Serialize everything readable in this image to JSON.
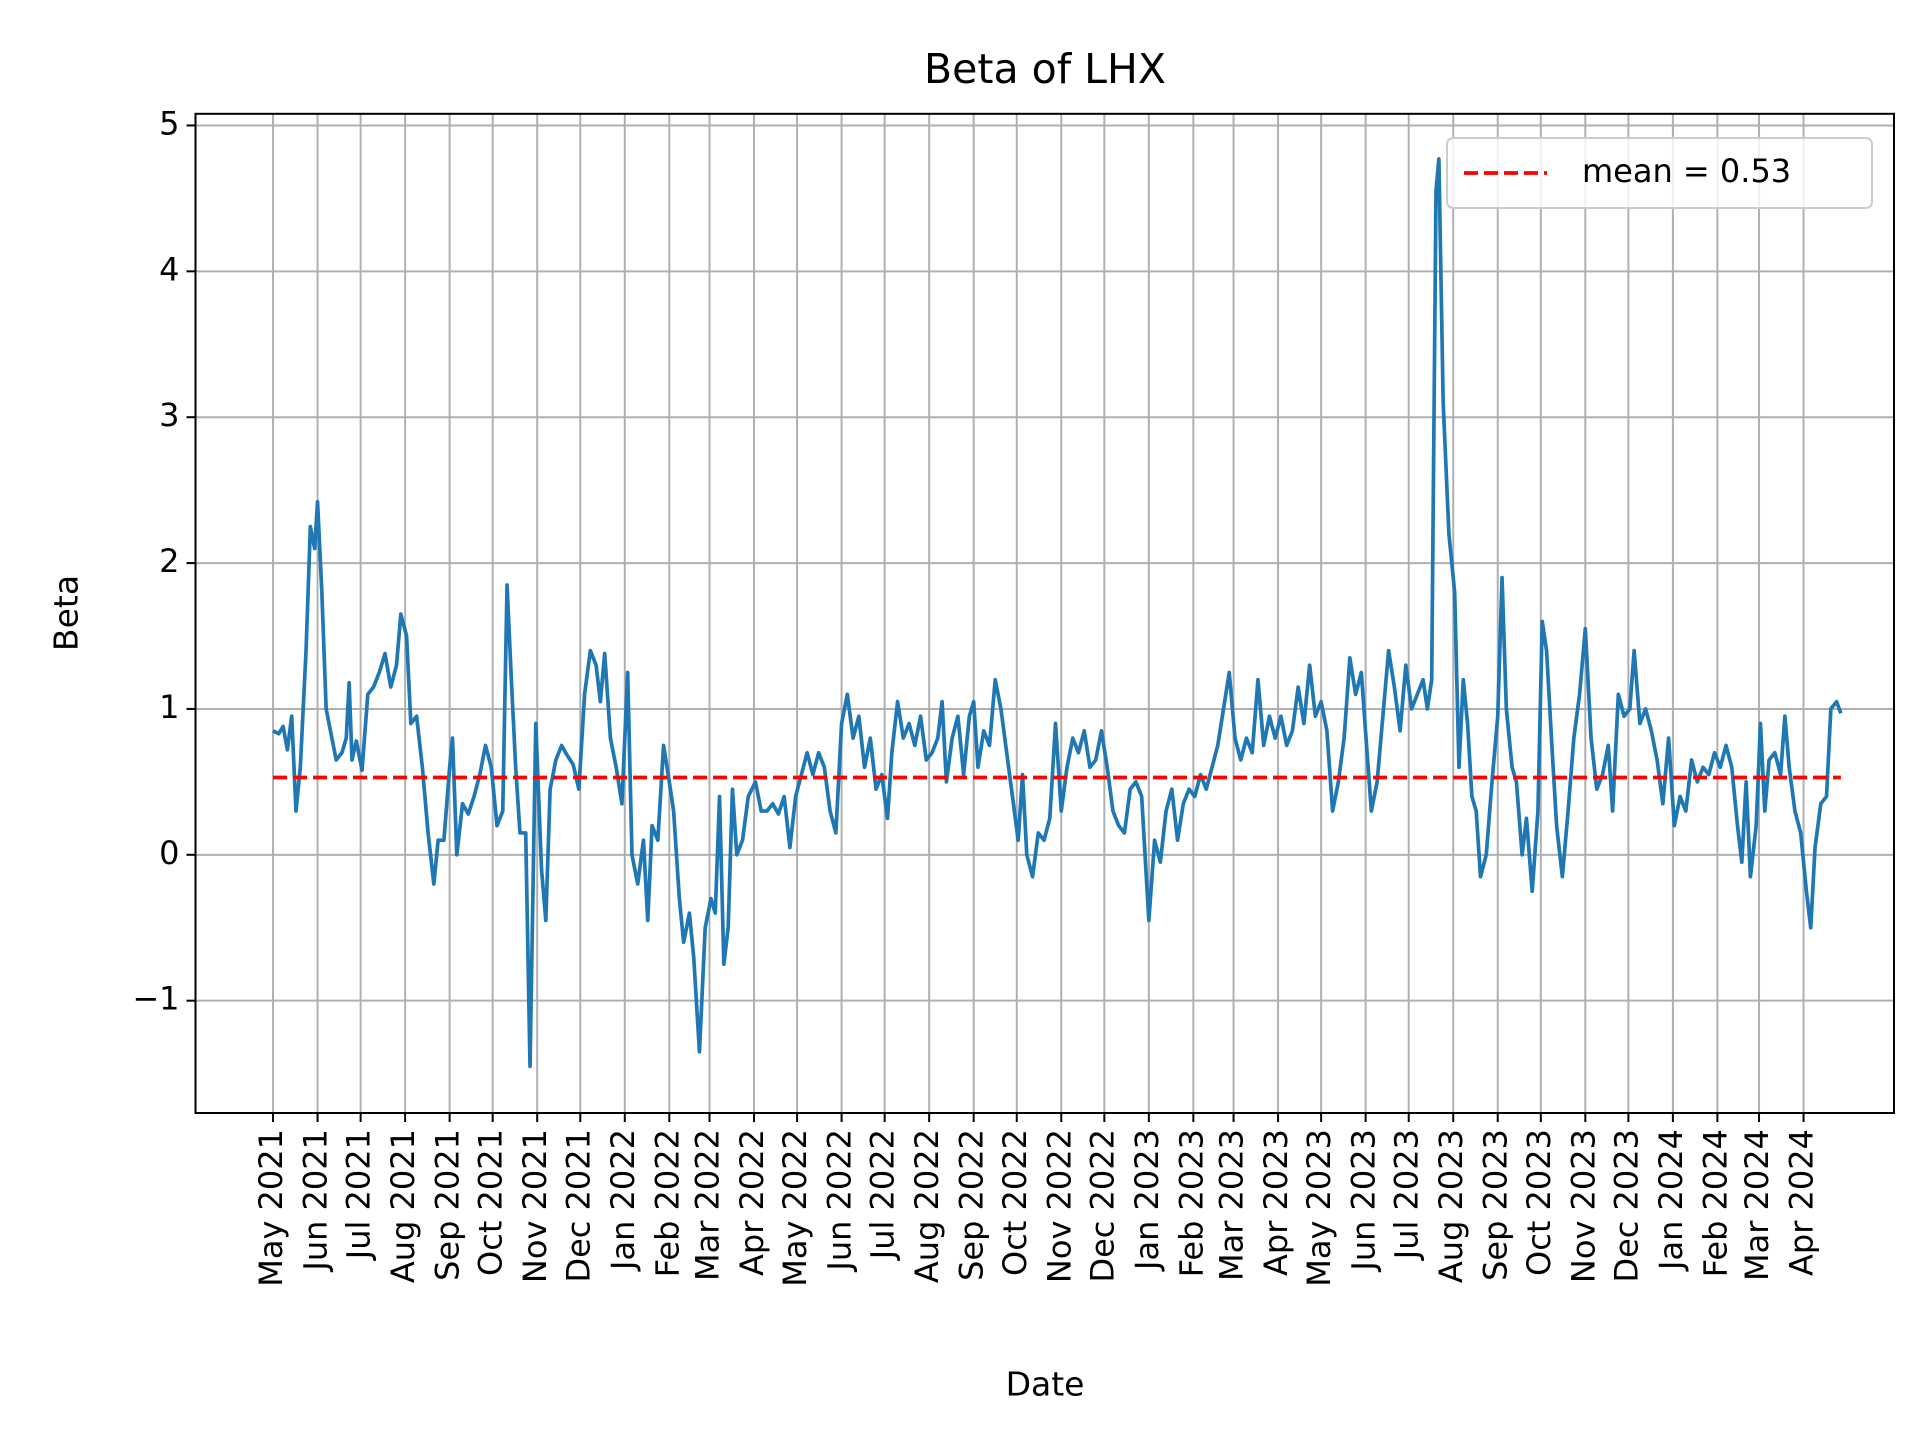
{
  "chart_data": {
    "type": "line",
    "title": "Beta of LHX",
    "x_label": "Date",
    "y_label": "Beta",
    "color": "#1f77b4",
    "grid": true,
    "legend_position": "upper right",
    "mean_line": {
      "name": "mean = 0.53",
      "value": 0.53,
      "color": "#ff0000"
    },
    "xlim": [
      "2021-03-08",
      "2024-06-03"
    ],
    "ylim": [
      -1.77,
      5.08
    ],
    "yticks": [
      {
        "value": -1,
        "label": "−1"
      },
      0,
      1,
      2,
      3,
      4,
      5
    ],
    "xticks": [
      {
        "value": "2021-05",
        "label": "May 2021"
      },
      {
        "value": "2021-06",
        "label": "Jun 2021"
      },
      {
        "value": "2021-07",
        "label": "Jul 2021"
      },
      {
        "value": "2021-08",
        "label": "Aug 2021"
      },
      {
        "value": "2021-09",
        "label": "Sep 2021"
      },
      {
        "value": "2021-10",
        "label": "Oct 2021"
      },
      {
        "value": "2021-11",
        "label": "Nov 2021"
      },
      {
        "value": "2021-12",
        "label": "Dec 2021"
      },
      {
        "value": "2022-01",
        "label": "Jan 2022"
      },
      {
        "value": "2022-02",
        "label": "Feb 2022"
      },
      {
        "value": "2022-03",
        "label": "Mar 2022"
      },
      {
        "value": "2022-04",
        "label": "Apr 2022"
      },
      {
        "value": "2022-05",
        "label": "May 2022"
      },
      {
        "value": "2022-06",
        "label": "Jun 2022"
      },
      {
        "value": "2022-07",
        "label": "Jul 2022"
      },
      {
        "value": "2022-08",
        "label": "Aug 2022"
      },
      {
        "value": "2022-09",
        "label": "Sep 2022"
      },
      {
        "value": "2022-10",
        "label": "Oct 2022"
      },
      {
        "value": "2022-11",
        "label": "Nov 2022"
      },
      {
        "value": "2022-12",
        "label": "Dec 2022"
      },
      {
        "value": "2023-01",
        "label": "Jan 2023"
      },
      {
        "value": "2023-02",
        "label": "Feb 2023"
      },
      {
        "value": "2023-03",
        "label": "Mar 2023"
      },
      {
        "value": "2023-04",
        "label": "Apr 2023"
      },
      {
        "value": "2023-05",
        "label": "May 2023"
      },
      {
        "value": "2023-06",
        "label": "Jun 2023"
      },
      {
        "value": "2023-07",
        "label": "Jul 2023"
      },
      {
        "value": "2023-08",
        "label": "Aug 2023"
      },
      {
        "value": "2023-09",
        "label": "Sep 2023"
      },
      {
        "value": "2023-10",
        "label": "Oct 2023"
      },
      {
        "value": "2023-11",
        "label": "Nov 2023"
      },
      {
        "value": "2023-12",
        "label": "Dec 2023"
      },
      {
        "value": "2024-01",
        "label": "Jan 2024"
      },
      {
        "value": "2024-02",
        "label": "Feb 2024"
      },
      {
        "value": "2024-03",
        "label": "Mar 2024"
      },
      {
        "value": "2024-04",
        "label": "Apr 2024"
      }
    ],
    "x": [
      "2021-05-01",
      "2021-05-05",
      "2021-05-08",
      "2021-05-11",
      "2021-05-14",
      "2021-05-17",
      "2021-05-20",
      "2021-05-24",
      "2021-05-27",
      "2021-05-30",
      "2021-06-01",
      "2021-06-04",
      "2021-06-07",
      "2021-06-10",
      "2021-06-14",
      "2021-06-18",
      "2021-06-21",
      "2021-06-23",
      "2021-06-25",
      "2021-06-28",
      "2021-07-02",
      "2021-07-06",
      "2021-07-10",
      "2021-07-14",
      "2021-07-18",
      "2021-07-22",
      "2021-07-26",
      "2021-07-29",
      "2021-08-02",
      "2021-08-05",
      "2021-08-09",
      "2021-08-13",
      "2021-08-17",
      "2021-08-21",
      "2021-08-24",
      "2021-08-28",
      "2021-09-01",
      "2021-09-03",
      "2021-09-06",
      "2021-09-10",
      "2021-09-14",
      "2021-09-18",
      "2021-09-22",
      "2021-09-26",
      "2021-09-30",
      "2021-10-04",
      "2021-10-08",
      "2021-10-11",
      "2021-10-14",
      "2021-10-17",
      "2021-10-20",
      "2021-10-24",
      "2021-10-27",
      "2021-10-31",
      "2021-11-04",
      "2021-11-07",
      "2021-11-10",
      "2021-11-14",
      "2021-11-18",
      "2021-11-22",
      "2021-11-26",
      "2021-11-30",
      "2021-12-04",
      "2021-12-08",
      "2021-12-12",
      "2021-12-15",
      "2021-12-18",
      "2021-12-22",
      "2021-12-26",
      "2021-12-30",
      "2022-01-03",
      "2022-01-06",
      "2022-01-10",
      "2022-01-14",
      "2022-01-17",
      "2022-01-20",
      "2022-01-24",
      "2022-01-28",
      "2022-02-01",
      "2022-02-04",
      "2022-02-08",
      "2022-02-11",
      "2022-02-15",
      "2022-02-18",
      "2022-02-22",
      "2022-02-26",
      "2022-03-02",
      "2022-03-05",
      "2022-03-08",
      "2022-03-11",
      "2022-03-14",
      "2022-03-17",
      "2022-03-20",
      "2022-03-24",
      "2022-03-28",
      "2022-04-02",
      "2022-04-06",
      "2022-04-10",
      "2022-04-14",
      "2022-04-18",
      "2022-04-22",
      "2022-04-26",
      "2022-04-30",
      "2022-05-04",
      "2022-05-08",
      "2022-05-12",
      "2022-05-16",
      "2022-05-20",
      "2022-05-24",
      "2022-05-28",
      "2022-06-01",
      "2022-06-05",
      "2022-06-09",
      "2022-06-13",
      "2022-06-17",
      "2022-06-21",
      "2022-06-25",
      "2022-06-29",
      "2022-07-03",
      "2022-07-06",
      "2022-07-10",
      "2022-07-14",
      "2022-07-18",
      "2022-07-22",
      "2022-07-26",
      "2022-07-30",
      "2022-08-03",
      "2022-08-07",
      "2022-08-10",
      "2022-08-13",
      "2022-08-17",
      "2022-08-21",
      "2022-08-25",
      "2022-08-29",
      "2022-09-01",
      "2022-09-04",
      "2022-09-08",
      "2022-09-12",
      "2022-09-16",
      "2022-09-20",
      "2022-09-24",
      "2022-09-28",
      "2022-10-02",
      "2022-10-05",
      "2022-10-08",
      "2022-10-12",
      "2022-10-16",
      "2022-10-20",
      "2022-10-24",
      "2022-10-28",
      "2022-11-01",
      "2022-11-05",
      "2022-11-09",
      "2022-11-13",
      "2022-11-17",
      "2022-11-21",
      "2022-11-25",
      "2022-11-29",
      "2022-12-03",
      "2022-12-07",
      "2022-12-11",
      "2022-12-15",
      "2022-12-19",
      "2022-12-23",
      "2022-12-27",
      "2023-01-01",
      "2023-01-05",
      "2023-01-09",
      "2023-01-13",
      "2023-01-17",
      "2023-01-21",
      "2023-01-25",
      "2023-01-29",
      "2023-02-02",
      "2023-02-06",
      "2023-02-10",
      "2023-02-14",
      "2023-02-18",
      "2023-02-22",
      "2023-02-26",
      "2023-03-02",
      "2023-03-06",
      "2023-03-10",
      "2023-03-14",
      "2023-03-18",
      "2023-03-22",
      "2023-03-26",
      "2023-03-30",
      "2023-04-03",
      "2023-04-07",
      "2023-04-11",
      "2023-04-15",
      "2023-04-19",
      "2023-04-23",
      "2023-04-27",
      "2023-05-01",
      "2023-05-05",
      "2023-05-09",
      "2023-05-13",
      "2023-05-17",
      "2023-05-21",
      "2023-05-25",
      "2023-05-29",
      "2023-06-02",
      "2023-06-05",
      "2023-06-09",
      "2023-06-13",
      "2023-06-17",
      "2023-06-21",
      "2023-06-25",
      "2023-06-29",
      "2023-07-03",
      "2023-07-07",
      "2023-07-11",
      "2023-07-14",
      "2023-07-17",
      "2023-07-20",
      "2023-07-22",
      "2023-07-25",
      "2023-07-29",
      "2023-08-02",
      "2023-08-05",
      "2023-08-08",
      "2023-08-11",
      "2023-08-14",
      "2023-08-17",
      "2023-08-20",
      "2023-08-24",
      "2023-08-28",
      "2023-09-01",
      "2023-09-04",
      "2023-09-07",
      "2023-09-11",
      "2023-09-14",
      "2023-09-18",
      "2023-09-21",
      "2023-09-25",
      "2023-09-29",
      "2023-10-02",
      "2023-10-05",
      "2023-10-09",
      "2023-10-12",
      "2023-10-16",
      "2023-10-20",
      "2023-10-24",
      "2023-10-28",
      "2023-11-01",
      "2023-11-05",
      "2023-11-09",
      "2023-11-13",
      "2023-11-17",
      "2023-11-20",
      "2023-11-24",
      "2023-11-28",
      "2023-12-02",
      "2023-12-05",
      "2023-12-09",
      "2023-12-13",
      "2023-12-17",
      "2023-12-21",
      "2023-12-25",
      "2023-12-29",
      "2024-01-02",
      "2024-01-06",
      "2024-01-10",
      "2024-01-14",
      "2024-01-18",
      "2024-01-22",
      "2024-01-26",
      "2024-01-30",
      "2024-02-03",
      "2024-02-07",
      "2024-02-11",
      "2024-02-15",
      "2024-02-18",
      "2024-02-21",
      "2024-02-24",
      "2024-02-28",
      "2024-03-02",
      "2024-03-05",
      "2024-03-08",
      "2024-03-12",
      "2024-03-16",
      "2024-03-19",
      "2024-03-22",
      "2024-03-26",
      "2024-03-30",
      "2024-04-03",
      "2024-04-06",
      "2024-04-09",
      "2024-04-13",
      "2024-04-17",
      "2024-04-20",
      "2024-04-24",
      "2024-04-27"
    ],
    "values": [
      0.85,
      0.83,
      0.88,
      0.72,
      0.95,
      0.3,
      0.6,
      1.4,
      2.25,
      2.1,
      2.42,
      1.8,
      1.0,
      0.85,
      0.65,
      0.7,
      0.8,
      1.18,
      0.65,
      0.78,
      0.58,
      1.1,
      1.15,
      1.25,
      1.38,
      1.15,
      1.3,
      1.65,
      1.5,
      0.9,
      0.95,
      0.6,
      0.15,
      -0.2,
      0.1,
      0.1,
      0.6,
      0.8,
      0.0,
      0.35,
      0.28,
      0.4,
      0.55,
      0.75,
      0.6,
      0.2,
      0.3,
      1.85,
      1.2,
      0.6,
      0.15,
      0.15,
      -1.45,
      0.9,
      -0.1,
      -0.45,
      0.45,
      0.65,
      0.75,
      0.68,
      0.62,
      0.45,
      1.1,
      1.4,
      1.3,
      1.05,
      1.38,
      0.8,
      0.6,
      0.35,
      1.25,
      0.0,
      -0.2,
      0.1,
      -0.45,
      0.2,
      0.1,
      0.75,
      0.5,
      0.3,
      -0.3,
      -0.6,
      -0.4,
      -0.7,
      -1.35,
      -0.5,
      -0.3,
      -0.4,
      0.4,
      -0.75,
      -0.5,
      0.45,
      0.0,
      0.1,
      0.4,
      0.5,
      0.3,
      0.3,
      0.35,
      0.28,
      0.4,
      0.05,
      0.4,
      0.55,
      0.7,
      0.55,
      0.7,
      0.6,
      0.3,
      0.15,
      0.9,
      1.1,
      0.8,
      0.95,
      0.6,
      0.8,
      0.45,
      0.55,
      0.25,
      0.7,
      1.05,
      0.8,
      0.9,
      0.75,
      0.95,
      0.65,
      0.7,
      0.8,
      1.05,
      0.5,
      0.8,
      0.95,
      0.55,
      0.95,
      1.05,
      0.6,
      0.85,
      0.75,
      1.2,
      1.0,
      0.7,
      0.4,
      0.1,
      0.55,
      0.0,
      -0.15,
      0.15,
      0.1,
      0.25,
      0.9,
      0.3,
      0.6,
      0.8,
      0.7,
      0.85,
      0.6,
      0.65,
      0.85,
      0.6,
      0.3,
      0.2,
      0.15,
      0.45,
      0.5,
      0.4,
      -0.45,
      0.1,
      -0.05,
      0.3,
      0.45,
      0.1,
      0.35,
      0.45,
      0.4,
      0.55,
      0.45,
      0.6,
      0.75,
      1.0,
      1.25,
      0.8,
      0.65,
      0.8,
      0.7,
      1.2,
      0.75,
      0.95,
      0.8,
      0.95,
      0.75,
      0.85,
      1.15,
      0.9,
      1.3,
      0.95,
      1.05,
      0.85,
      0.3,
      0.5,
      0.8,
      1.35,
      1.1,
      1.25,
      0.7,
      0.3,
      0.5,
      0.95,
      1.4,
      1.15,
      0.85,
      1.3,
      1.0,
      1.1,
      1.2,
      1.0,
      1.2,
      4.55,
      4.77,
      3.1,
      2.2,
      1.8,
      0.6,
      1.2,
      0.9,
      0.4,
      0.3,
      -0.15,
      0.0,
      0.5,
      0.95,
      1.9,
      1.0,
      0.6,
      0.5,
      0.0,
      0.25,
      -0.25,
      0.3,
      1.6,
      1.4,
      0.7,
      0.2,
      -0.15,
      0.3,
      0.8,
      1.1,
      1.55,
      0.8,
      0.45,
      0.55,
      0.75,
      0.3,
      1.1,
      0.95,
      1.0,
      1.4,
      0.9,
      1.0,
      0.85,
      0.65,
      0.35,
      0.8,
      0.2,
      0.4,
      0.3,
      0.65,
      0.5,
      0.6,
      0.55,
      0.7,
      0.6,
      0.75,
      0.6,
      0.2,
      -0.05,
      0.5,
      -0.15,
      0.2,
      0.9,
      0.3,
      0.65,
      0.7,
      0.55,
      0.95,
      0.6,
      0.3,
      0.15,
      -0.25,
      -0.5,
      0.05,
      0.35,
      0.4,
      1.0,
      1.05,
      0.97
    ]
  }
}
